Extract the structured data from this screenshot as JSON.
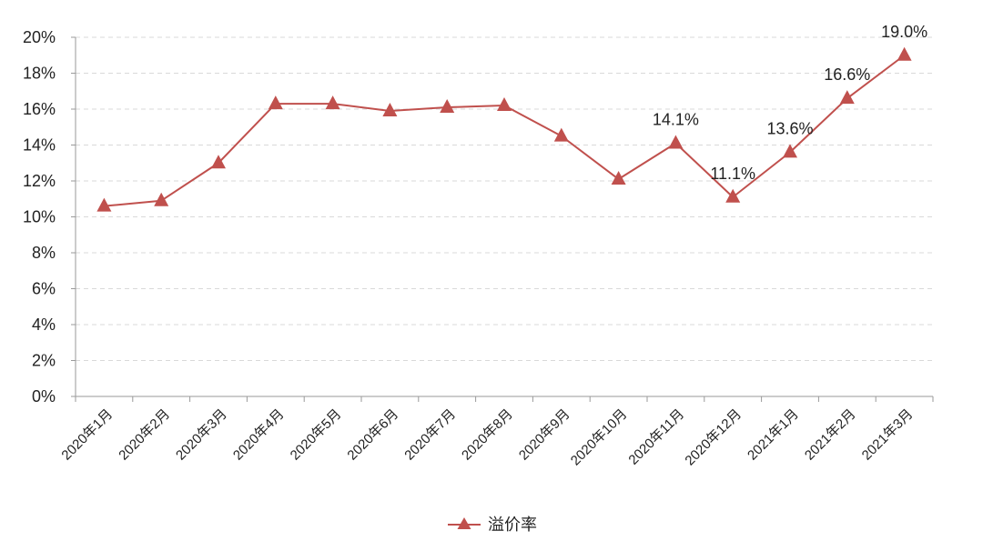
{
  "chart_data": {
    "type": "line",
    "title": "",
    "xlabel": "",
    "ylabel": "",
    "categories": [
      "2020年1月",
      "2020年2月",
      "2020年3月",
      "2020年4月",
      "2020年5月",
      "2020年6月",
      "2020年7月",
      "2020年8月",
      "2020年9月",
      "2020年10月",
      "2020年11月",
      "2020年12月",
      "2021年1月",
      "2021年2月",
      "2021年3月"
    ],
    "series": [
      {
        "name": "溢价率",
        "values": [
          10.6,
          10.9,
          13.0,
          16.3,
          16.3,
          15.9,
          16.1,
          16.2,
          14.5,
          12.1,
          14.1,
          11.1,
          13.6,
          16.6,
          19.0
        ],
        "color": "#c0504d",
        "marker": "triangle"
      }
    ],
    "data_labels": [
      {
        "index": 10,
        "text": "14.1%"
      },
      {
        "index": 11,
        "text": "11.1%"
      },
      {
        "index": 12,
        "text": "13.6%"
      },
      {
        "index": 13,
        "text": "16.6%"
      },
      {
        "index": 14,
        "text": "19.0%"
      }
    ],
    "y_ticks": [
      "0%",
      "2%",
      "4%",
      "6%",
      "8%",
      "10%",
      "12%",
      "14%",
      "16%",
      "18%",
      "20%"
    ],
    "ylim": [
      0,
      20
    ],
    "grid": true,
    "legend_position": "bottom-center"
  }
}
